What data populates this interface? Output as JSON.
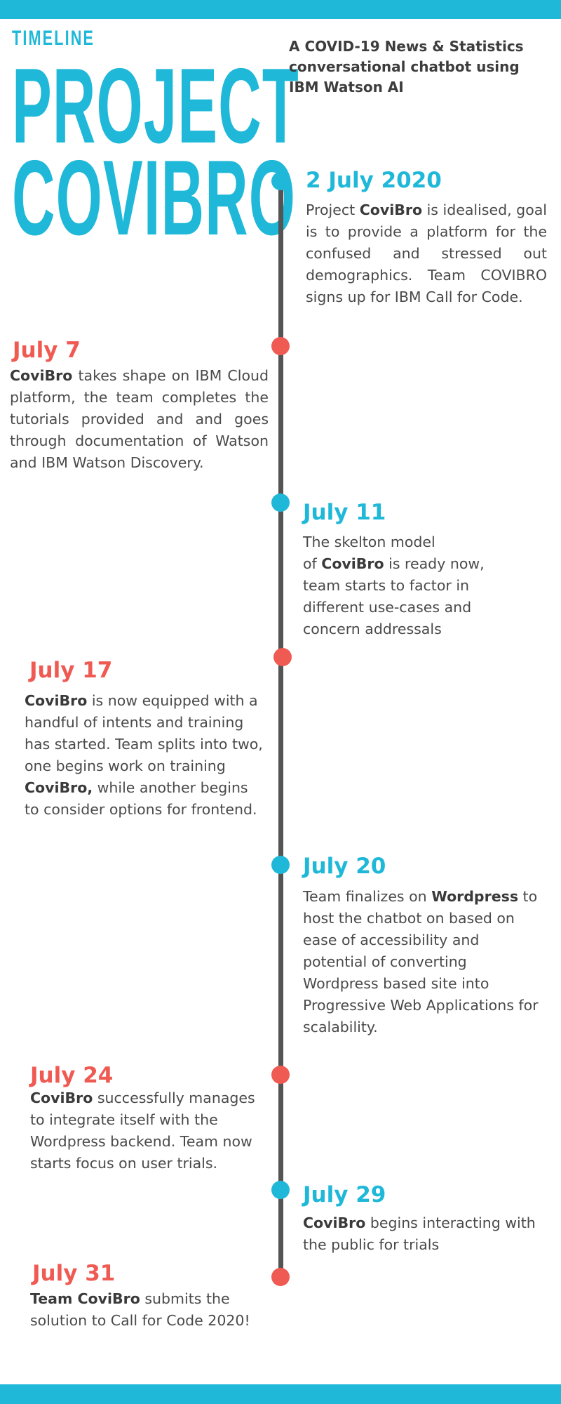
{
  "header": {
    "kicker": "TIMELINE",
    "title_line1": "PROJECT",
    "title_line2": "COVIBRO",
    "subtitle": "A COVID-19 News & Statistics conversational chatbot using IBM Watson AI"
  },
  "colors": {
    "accent": "#1fb8d8",
    "highlight": "#ef5a52",
    "line": "#545454",
    "text": "#4a4a4a"
  },
  "events": [
    {
      "date": "2 July 2020",
      "color": "blue",
      "parts": [
        {
          "t": "Project "
        },
        {
          "t": "CoviBro",
          "b": true
        },
        {
          "t": " is idealised, goal is to provide a platform for the confused and stressed out demographics. Team COVIBRO signs up for IBM Call for Code."
        }
      ]
    },
    {
      "date": "July 7",
      "color": "red",
      "parts": [
        {
          "t": "CoviBro",
          "b": true
        },
        {
          "t": " takes shape on IBM Cloud platform, the team completes the tutorials provided and and goes through documentation of Watson and IBM Watson Discovery."
        }
      ]
    },
    {
      "date": "July 11",
      "color": "blue",
      "parts": [
        {
          "t": "The skelton model"
        },
        {
          "br": true
        },
        {
          "t": "of "
        },
        {
          "t": "CoviBro",
          "b": true
        },
        {
          "t": " is ready now,"
        },
        {
          "br": true
        },
        {
          "t": "team starts to factor in"
        },
        {
          "br": true
        },
        {
          "t": "different use-cases and"
        },
        {
          "br": true
        },
        {
          "t": "concern addressals"
        }
      ]
    },
    {
      "date": "July 17",
      "color": "red",
      "parts": [
        {
          "t": "CoviBro",
          "b": true
        },
        {
          "t": " is now equipped with a handful of intents and training has started. Team splits into two, one begins work on training "
        },
        {
          "t": "CoviBro,",
          "b": true
        },
        {
          "t": " while another begins to consider options for frontend."
        }
      ]
    },
    {
      "date": "July 20",
      "color": "blue",
      "parts": [
        {
          "t": "Team finalizes on "
        },
        {
          "t": "Wordpress",
          "b": true
        },
        {
          "t": " to"
        },
        {
          "br": true
        },
        {
          "t": "host the chatbot on based on"
        },
        {
          "br": true
        },
        {
          "t": "ease of accessibility and"
        },
        {
          "br": true
        },
        {
          "t": "potential of converting"
        },
        {
          "br": true
        },
        {
          "t": " Wordpress based site into"
        },
        {
          "br": true
        },
        {
          "t": "Progressive Web Applications for"
        },
        {
          "br": true
        },
        {
          "t": "scalability."
        }
      ]
    },
    {
      "date": "July 24",
      "color": "red",
      "parts": [
        {
          "t": "CoviBro",
          "b": true
        },
        {
          "t": " successfully manages"
        },
        {
          "br": true
        },
        {
          "t": "to integrate itself with the"
        },
        {
          "br": true
        },
        {
          "t": "Wordpress backend. Team now"
        },
        {
          "br": true
        },
        {
          "t": "starts focus on user trials."
        }
      ]
    },
    {
      "date": "July 29",
      "color": "blue",
      "parts": [
        {
          "t": "CoviBro",
          "b": true
        },
        {
          "t": " begins interacting with"
        },
        {
          "br": true
        },
        {
          "t": "the public for trials"
        }
      ]
    },
    {
      "date": "July 31",
      "color": "red",
      "parts": [
        {
          "t": "Team CoviBro",
          "b": true
        },
        {
          "t": " submits the"
        },
        {
          "br": true
        },
        {
          "t": "solution to Call for Code 2020!"
        }
      ]
    }
  ]
}
